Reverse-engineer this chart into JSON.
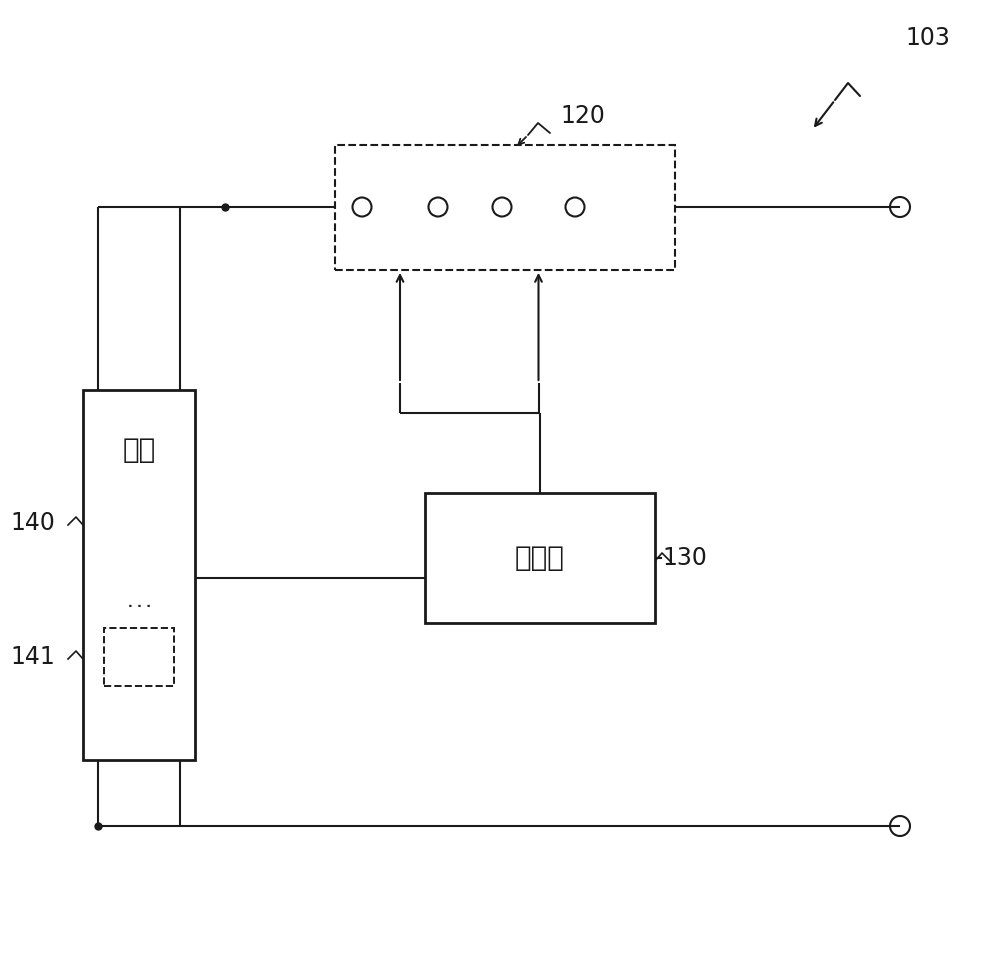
{
  "bg_color": "#ffffff",
  "line_color": "#1a1a1a",
  "label_103": "103",
  "label_120": "120",
  "label_130": "130",
  "label_140": "140",
  "label_141": "141",
  "text_battery": "电池",
  "text_controller": "控制器",
  "figsize": [
    10.0,
    9.68
  ],
  "dpi": 100
}
